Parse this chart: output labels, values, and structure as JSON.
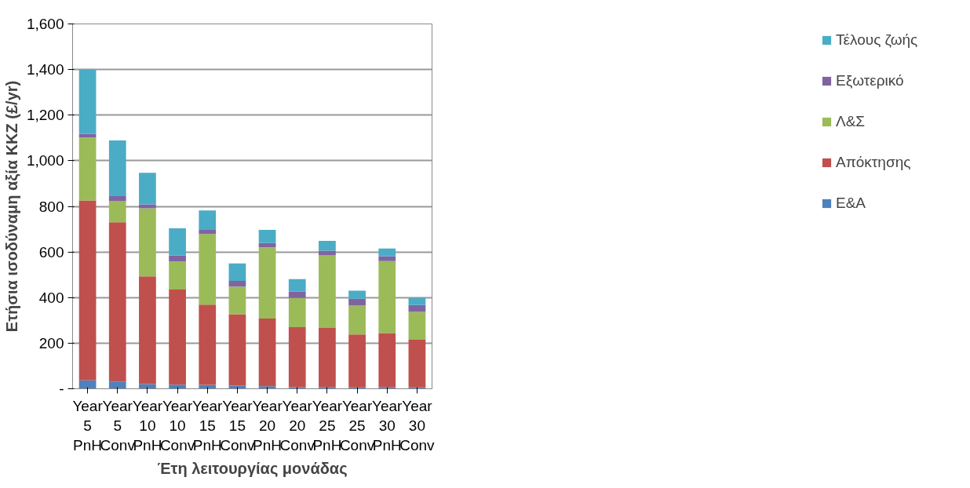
{
  "chart_data": {
    "type": "bar",
    "stacked": true,
    "xlabel": "Έτη λειτουργίας μονάδας",
    "ylabel": "Ετήσια ισοδύναμη αξία ΚΚΖ (£/yr)",
    "categories": [
      "Year 5\nPnH",
      "Year 5\nConv",
      "Year 10\nPnH",
      "Year 10\nConv",
      "Year 15\nPnH",
      "Year 15\nConv",
      "Year 20\nPnH",
      "Year 20\nConv",
      "Year 25\nPnH",
      "Year 25\nConv",
      "Year 30\nPnH",
      "Year 30\nConv"
    ],
    "series": [
      {
        "name": "Ε&Α",
        "color": "#4f81bd",
        "values": [
          37,
          32,
          21,
          18,
          17,
          14,
          11,
          7,
          8,
          6,
          8,
          6
        ]
      },
      {
        "name": "Απόκτησης",
        "color": "#c0504d",
        "values": [
          789,
          698,
          472,
          417,
          352,
          313,
          297,
          263,
          259,
          232,
          236,
          209
        ]
      },
      {
        "name": "Λ&Σ",
        "color": "#9bbb59",
        "values": [
          276,
          92,
          298,
          124,
          310,
          121,
          312,
          128,
          318,
          127,
          316,
          122
        ]
      },
      {
        "name": "Εξωτερικό",
        "color": "#8064a2",
        "values": [
          15,
          23,
          18,
          26,
          18,
          25,
          19,
          29,
          21,
          30,
          21,
          30
        ]
      },
      {
        "name": "Τέλους ζωής",
        "color": "#4bacc6",
        "values": [
          283,
          244,
          138,
          119,
          85,
          77,
          58,
          54,
          43,
          35,
          34,
          31
        ]
      }
    ],
    "ylim": [
      0,
      1600
    ],
    "yticks": [
      {
        "value": 0,
        "label": "-"
      },
      200,
      400,
      600,
      800,
      {
        "value": 1000,
        "label": "1,000"
      },
      {
        "value": 1200,
        "label": "1,200"
      },
      {
        "value": 1400,
        "label": "1,400"
      },
      {
        "value": 1600,
        "label": "1,600"
      }
    ],
    "grid": "y",
    "legend": "right"
  }
}
